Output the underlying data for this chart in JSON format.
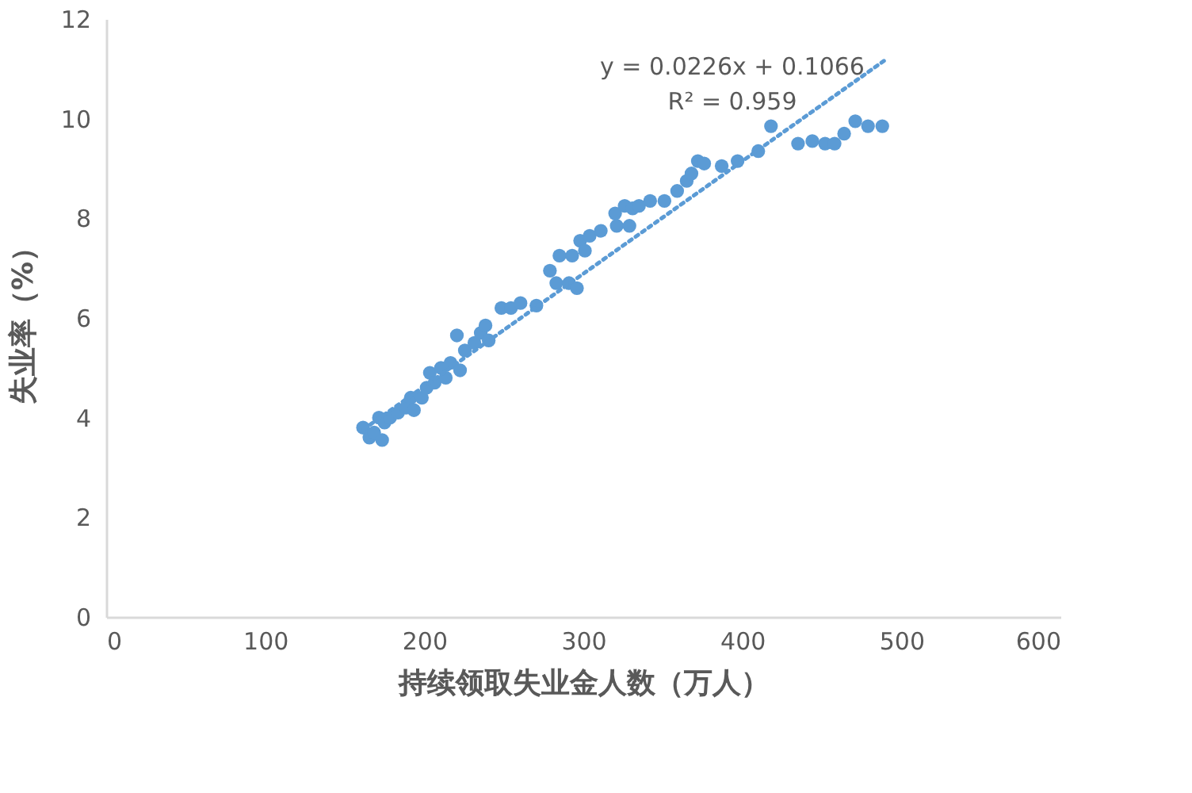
{
  "chart_data": {
    "type": "scatter",
    "xlabel": "持续领取失业金人数（万人）",
    "ylabel": "失业率（%）",
    "xlim": [
      0,
      600
    ],
    "xticks": [
      0,
      100,
      200,
      300,
      400,
      500,
      600
    ],
    "ylim": [
      0,
      12
    ],
    "yticks": [
      0,
      2,
      4,
      6,
      8,
      10,
      12
    ],
    "grid": false,
    "marker": "circle",
    "annotations": [
      "y = 0.0226x + 0.1066",
      "R² = 0.959"
    ],
    "series": [
      {
        "color": "#5b9bd5",
        "x": [
          161.5,
          165.5,
          168.5,
          171.5,
          173.5,
          175,
          178.5,
          183.5,
          188.5,
          191.5,
          193.5,
          198.5,
          201.5,
          203.5,
          206.5,
          210.5,
          213.5,
          216.5,
          220.5,
          222.5,
          225.5,
          231.5,
          235.5,
          238.5,
          240.5,
          248.5,
          254.5,
          260.5,
          270.5,
          279,
          283,
          285,
          291,
          293,
          296,
          298,
          301,
          304,
          311,
          320,
          321,
          326,
          329,
          331,
          335,
          342,
          351,
          359,
          365,
          368,
          372,
          376,
          387,
          397,
          410,
          418,
          435,
          444,
          452,
          458,
          464,
          471,
          479,
          488
        ],
        "values": [
          3.8,
          3.6,
          3.7,
          4.0,
          3.55,
          3.9,
          4.0,
          4.1,
          4.2,
          4.4,
          4.15,
          4.4,
          4.6,
          4.9,
          4.7,
          5.0,
          4.8,
          5.1,
          5.65,
          4.95,
          5.35,
          5.5,
          5.7,
          5.85,
          5.55,
          6.2,
          6.2,
          6.3,
          6.25,
          6.95,
          6.7,
          7.25,
          6.7,
          7.25,
          6.6,
          7.55,
          7.35,
          7.65,
          7.75,
          8.1,
          7.85,
          8.25,
          7.85,
          8.2,
          8.25,
          8.35,
          8.35,
          8.55,
          8.75,
          8.9,
          9.15,
          9.1,
          9.05,
          9.15,
          9.35,
          9.85,
          9.5,
          9.55,
          9.5,
          9.5,
          9.7,
          9.95,
          9.85,
          9.85
        ]
      },
      {
        "type": "line",
        "color": "#5b9bd5",
        "line_style": "dotted",
        "marker": "none",
        "x": [
          162,
          489
        ],
        "values": [
          3.77,
          11.16
        ]
      }
    ]
  }
}
